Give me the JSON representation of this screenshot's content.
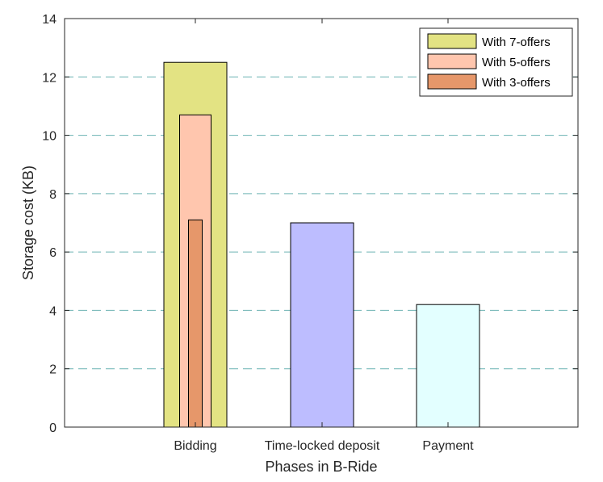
{
  "chart_data": {
    "type": "bar",
    "categories": [
      "Bidding",
      "Time-locked deposit",
      "Payment"
    ],
    "xlabel": "Phases in B-Ride",
    "ylabel": "Storage cost (KB)",
    "ylim": [
      0,
      14
    ],
    "yticks": [
      0,
      2,
      4,
      6,
      8,
      10,
      12,
      14
    ],
    "grid": "horizontal dashed",
    "legend_position": "top-right",
    "series": [
      {
        "name": "With 7-offers",
        "category": "Bidding",
        "value": 12.5,
        "color": "#e3e383"
      },
      {
        "name": "With 5-offers",
        "category": "Bidding",
        "value": 10.7,
        "color": "#ffc6ae"
      },
      {
        "name": "With 3-offers",
        "category": "Bidding",
        "value": 7.1,
        "color": "#e6976a"
      }
    ],
    "other_bars": [
      {
        "category": "Time-locked deposit",
        "value": 7.0,
        "color": "#bdbdff"
      },
      {
        "category": "Payment",
        "value": 4.2,
        "color": "#e3ffff"
      }
    ],
    "colors": {
      "grid": "#6cb3b3",
      "axis": "#262626",
      "bar_edge": "#000000"
    }
  }
}
